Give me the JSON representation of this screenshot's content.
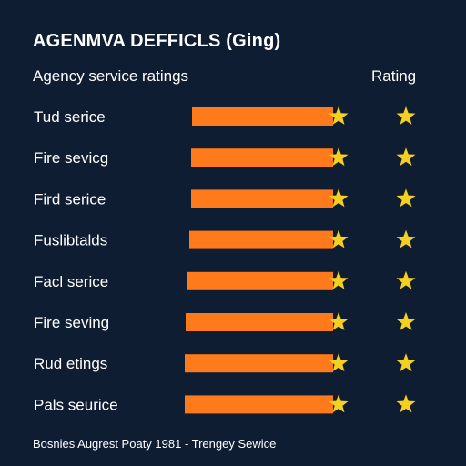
{
  "chart_data": {
    "type": "bar",
    "title": "AGENMVA DEFFICLS (Ging)",
    "category_header": "Agency service ratings",
    "rating_header": "Rating",
    "categories": [
      "Tud serice",
      "Fire sevicg",
      "Fird serice",
      "Fuslibtalds",
      "Facl serice",
      "Fire seving",
      "Rud etings",
      "Pals seurice"
    ],
    "values": [
      5,
      5,
      5,
      5,
      5,
      5,
      5,
      5
    ],
    "ratings": [
      1,
      1,
      1,
      1,
      1,
      1,
      1,
      1
    ],
    "xlim": [
      0,
      5
    ],
    "grid": false,
    "legend": "none",
    "footer": "Bosnies Augrest Poaty 1981 - Trengey Sewice"
  },
  "colors": {
    "background": "#0f1d33",
    "bar": "#ff7a1a",
    "star": "#f5d020",
    "text": "#ffffff"
  },
  "icons": {
    "bar_end": "star-icon",
    "rating": "star-icon"
  }
}
